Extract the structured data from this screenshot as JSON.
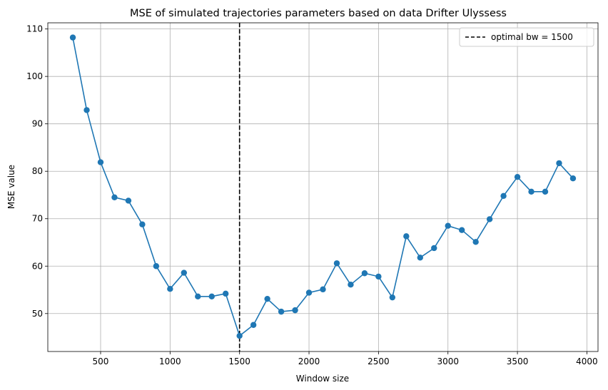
{
  "chart_data": {
    "type": "line",
    "title": "MSE of simulated trajectories parameters based on data Drifter Ulyssess",
    "xlabel": "Window size",
    "ylabel": "MSE value",
    "xlim": [
      120,
      4080
    ],
    "ylim": [
      42,
      111.3
    ],
    "xticks": [
      500,
      1000,
      1500,
      2000,
      2500,
      3000,
      3500,
      4000
    ],
    "yticks": [
      50,
      60,
      70,
      80,
      90,
      100,
      110
    ],
    "grid": true,
    "series": [
      {
        "color": "#1f77b4",
        "marker": "circle",
        "x": [
          300,
          400,
          500,
          600,
          700,
          800,
          900,
          1000,
          1100,
          1200,
          1300,
          1400,
          1500,
          1600,
          1700,
          1800,
          1900,
          2000,
          2100,
          2200,
          2300,
          2400,
          2500,
          2600,
          2700,
          2800,
          2900,
          3000,
          3100,
          3200,
          3300,
          3400,
          3500,
          3600,
          3700,
          3800,
          3900
        ],
        "y": [
          108.2,
          92.9,
          81.9,
          74.5,
          73.8,
          68.8,
          60.0,
          55.2,
          58.6,
          53.6,
          53.6,
          54.2,
          45.3,
          47.6,
          53.1,
          50.4,
          50.7,
          54.4,
          55.1,
          60.6,
          56.1,
          58.5,
          57.8,
          53.4,
          66.3,
          61.8,
          63.8,
          68.5,
          67.6,
          65.1,
          69.9,
          74.8,
          78.8,
          75.7,
          75.7,
          81.7,
          78.5
        ]
      }
    ],
    "vline": {
      "x": 1500,
      "color": "#000000",
      "style": "dashed",
      "label": "optimal bw = 1500"
    },
    "legend": {
      "position": "top-right",
      "entries": [
        "optimal bw = 1500"
      ]
    }
  }
}
